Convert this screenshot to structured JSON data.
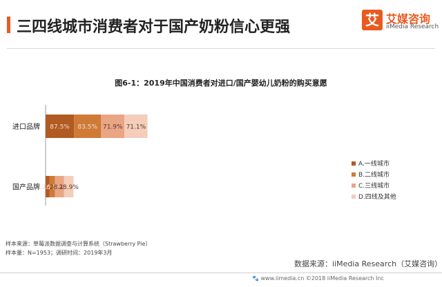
{
  "header": {
    "title": "三四线城市消费者对于国产奶粉信心更强",
    "accent_color": "#e85a20"
  },
  "logo": {
    "mark_char": "艾",
    "name_cn": "艾媒咨询",
    "name_en": "iiMedia Research",
    "brand_color": "#e85a20"
  },
  "chart_data": {
    "type": "bar",
    "orientation": "horizontal",
    "stacked": true,
    "title": "图6-1：2019年中国消费者对进口/国产婴幼儿奶粉的购买意愿",
    "categories": [
      "进口品牌",
      "国产品牌"
    ],
    "series": [
      {
        "name": "A.一线城市",
        "color": "#b15a22",
        "values": [
          87.5,
          12.5
        ],
        "labels": [
          "87.5%",
          "12.5%"
        ]
      },
      {
        "name": "B.二线城市",
        "color": "#d07a38",
        "values": [
          83.5,
          16.5
        ],
        "labels": [
          "83.5%",
          "16.5%"
        ]
      },
      {
        "name": "C.三线城市",
        "color": "#eaa584",
        "values": [
          71.9,
          28.1
        ],
        "labels": [
          "71.9%",
          "28.1%"
        ]
      },
      {
        "name": "D.四线及其他",
        "color": "#f4cdbb",
        "values": [
          71.1,
          28.9
        ],
        "labels": [
          "71.1%",
          "28.9%"
        ]
      }
    ],
    "legend_position": "right",
    "grid": false
  },
  "footer": {
    "sample_source": "样本来源：草莓派数据调查与计算系统（Strawberry   Pie）",
    "sample_size": "样本量：N=1953；调研时间：2019年3月",
    "data_source": "数据来源：iiMedia Research（艾媒咨询）",
    "watermark": "🐾 www.iimedia.cn   ©2018  iiMedia Research Inc"
  }
}
